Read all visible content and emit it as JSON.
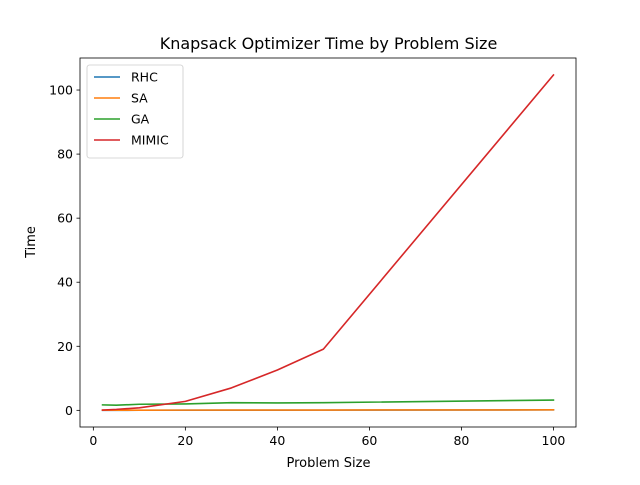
{
  "chart_data": {
    "type": "line",
    "title": "Knapsack Optimizer Time by Problem Size",
    "xlabel": "Problem Size",
    "ylabel": "Time",
    "xlim": [
      -2.9,
      104.9
    ],
    "ylim": [
      -5.2,
      110
    ],
    "xticks": [
      0,
      20,
      40,
      60,
      80,
      100
    ],
    "yticks": [
      0,
      20,
      40,
      60,
      80,
      100
    ],
    "grid": false,
    "legend_position": "top-left",
    "series": [
      {
        "name": "RHC",
        "color": "#1f77b4",
        "x": [
          2,
          5,
          10,
          20,
          30,
          40,
          50,
          100
        ],
        "y": [
          0.02,
          0.02,
          0.03,
          0.04,
          0.05,
          0.06,
          0.07,
          0.15
        ]
      },
      {
        "name": "SA",
        "color": "#ff7f0e",
        "x": [
          2,
          5,
          10,
          20,
          30,
          40,
          50,
          100
        ],
        "y": [
          0.05,
          0.05,
          0.06,
          0.07,
          0.08,
          0.09,
          0.1,
          0.15
        ]
      },
      {
        "name": "GA",
        "color": "#2ca02c",
        "x": [
          2,
          5,
          10,
          20,
          30,
          40,
          50,
          100
        ],
        "y": [
          1.7,
          1.6,
          1.9,
          2.0,
          2.4,
          2.3,
          2.4,
          3.2
        ]
      },
      {
        "name": "MIMIC",
        "color": "#d62728",
        "x": [
          2,
          5,
          10,
          20,
          30,
          40,
          50,
          100
        ],
        "y": [
          0.1,
          0.3,
          0.8,
          2.8,
          7.0,
          12.6,
          19.1,
          104.7
        ]
      }
    ]
  }
}
